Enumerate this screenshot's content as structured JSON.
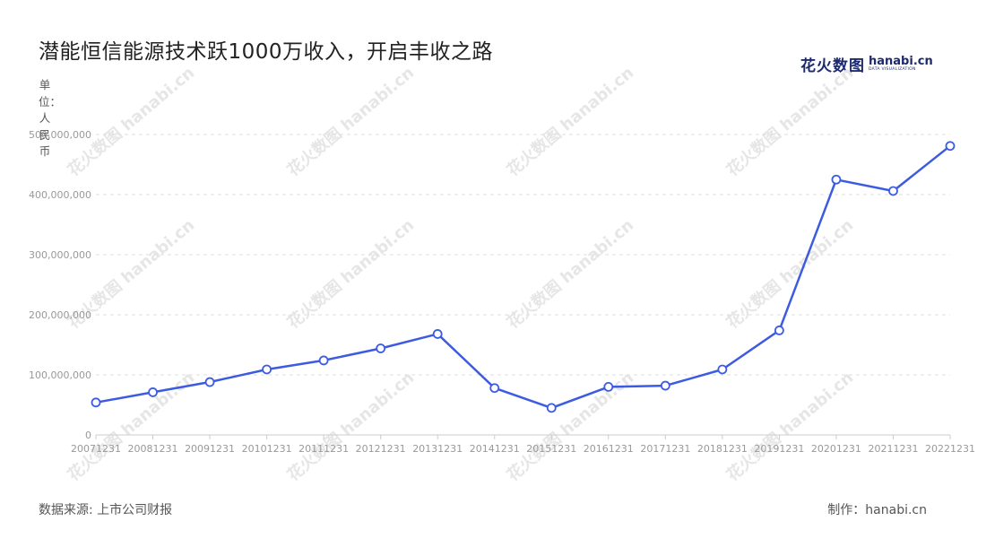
{
  "title": "潜能恒信能源技术跃1000万收入，开启丰收之路",
  "logo": {
    "cn": "花火数图",
    "en": "hanabi.cn",
    "en_sub": "DATA VISUALIZATION"
  },
  "unit_label": "单位：人民币",
  "source": "数据来源: 上市公司财报",
  "maker": "制作：hanabi.cn",
  "watermark_text": "花火数图 hanabi.cn",
  "colors": {
    "line": "#3d5be0",
    "grid": "#dddddd",
    "axis": "#cccccc",
    "tick_text": "#999999"
  },
  "chart_data": {
    "type": "line",
    "title": "潜能恒信能源技术跃1000万收入，开启丰收之路",
    "ylabel": "单位：人民币",
    "xlabel": "",
    "ylim": [
      0,
      500000000
    ],
    "y_ticks": [
      "0",
      "100,000,000",
      "200,000,000",
      "300,000,000",
      "400,000,000",
      "500,000,000"
    ],
    "grid": true,
    "categories": [
      "20071231",
      "20081231",
      "20091231",
      "20101231",
      "20111231",
      "20121231",
      "20131231",
      "20141231",
      "20151231",
      "20161231",
      "20171231",
      "20181231",
      "20191231",
      "20201231",
      "20211231",
      "20221231"
    ],
    "series": [
      {
        "values": [
          54000000,
          71000000,
          88000000,
          109000000,
          124000000,
          144000000,
          168000000,
          78000000,
          45000000,
          80000000,
          82000000,
          109000000,
          174000000,
          425000000,
          406000000,
          481000000
        ]
      }
    ]
  }
}
